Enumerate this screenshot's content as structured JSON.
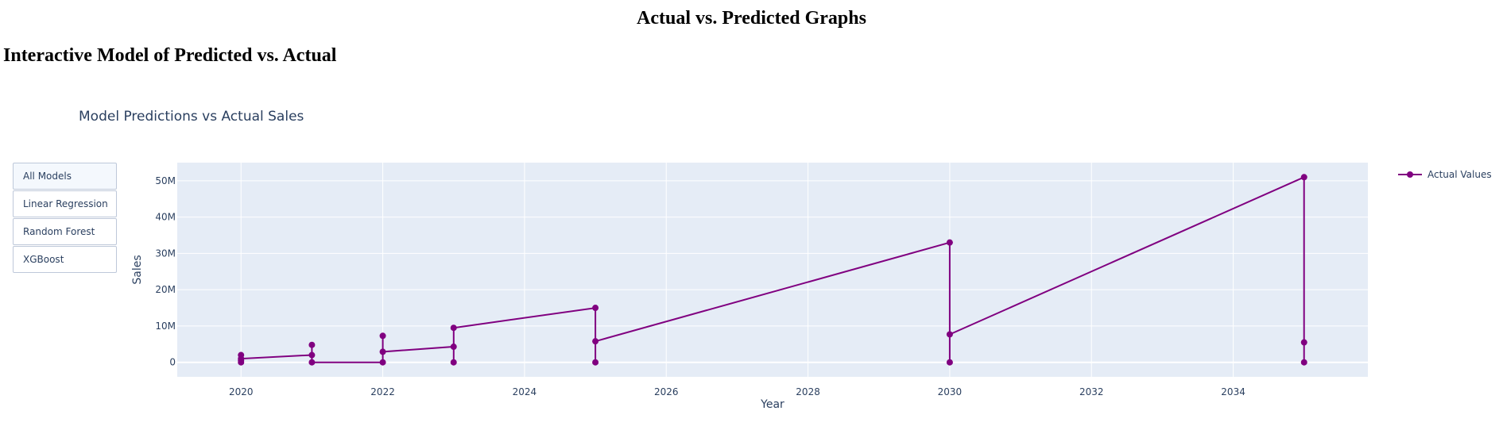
{
  "page": {
    "heading": "Actual vs. Predicted Graphs",
    "section_heading": "Interactive Model of Predicted vs. Actual"
  },
  "controls": {
    "buttons": [
      {
        "label": "All Models",
        "active": true
      },
      {
        "label": "Linear Regression",
        "active": false
      },
      {
        "label": "Random Forest",
        "active": false
      },
      {
        "label": "XGBoost",
        "active": false
      }
    ]
  },
  "chart_data": {
    "type": "line",
    "title": "Model Predictions vs Actual Sales",
    "xlabel": "Year",
    "ylabel": "Sales",
    "xlim": [
      2019.1,
      2035.9
    ],
    "ylim": [
      -4000000,
      55000000
    ],
    "x_ticks": [
      2020,
      2022,
      2024,
      2026,
      2028,
      2030,
      2032,
      2034
    ],
    "y_ticks": [
      {
        "value": 0,
        "label": "0"
      },
      {
        "value": 10000000,
        "label": "10M"
      },
      {
        "value": 20000000,
        "label": "20M"
      },
      {
        "value": 30000000,
        "label": "30M"
      },
      {
        "value": 40000000,
        "label": "40M"
      },
      {
        "value": 50000000,
        "label": "50M"
      }
    ],
    "grid": true,
    "legend_position": "top-right",
    "plot_bg": "#e5ecf6",
    "series": [
      {
        "name": "Actual Values",
        "color": "#800080",
        "mode": "lines+markers",
        "points": [
          {
            "x": 2020,
            "y": 0
          },
          {
            "x": 2020,
            "y": 500000
          },
          {
            "x": 2020,
            "y": 2000000
          },
          {
            "x": 2020,
            "y": 1000000
          },
          {
            "x": 2021,
            "y": 2000000
          },
          {
            "x": 2021,
            "y": 4800000
          },
          {
            "x": 2021,
            "y": 0
          },
          {
            "x": 2022,
            "y": 0
          },
          {
            "x": 2022,
            "y": 7300000
          },
          {
            "x": 2022,
            "y": 2900000
          },
          {
            "x": 2023,
            "y": 4300000
          },
          {
            "x": 2023,
            "y": 0
          },
          {
            "x": 2023,
            "y": 9500000
          },
          {
            "x": 2025,
            "y": 15000000
          },
          {
            "x": 2025,
            "y": 0
          },
          {
            "x": 2025,
            "y": 5800000
          },
          {
            "x": 2030,
            "y": 33000000
          },
          {
            "x": 2030,
            "y": 0
          },
          {
            "x": 2030,
            "y": 7700000
          },
          {
            "x": 2035,
            "y": 51000000
          },
          {
            "x": 2035,
            "y": 0
          },
          {
            "x": 2035,
            "y": 5500000
          }
        ]
      }
    ]
  }
}
